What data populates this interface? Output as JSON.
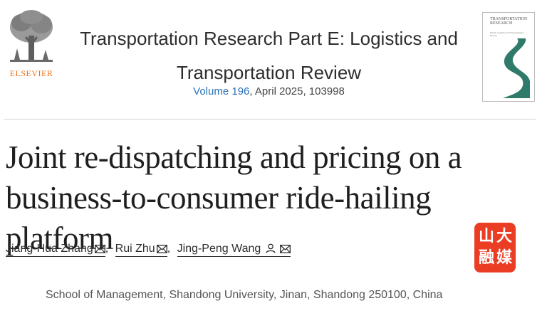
{
  "publisher": {
    "name": "ELSEVIER"
  },
  "journal": {
    "title_line1": "Transportation Research Part E: Logistics and",
    "title_line2": "Transportation Review",
    "volume_link": "Volume 196",
    "issue_rest": ", April 2025, 103998",
    "cover": {
      "title_line1": "TRANSPORTATION",
      "title_line2": "RESEARCH",
      "subtitle": "Part E: Logistics and Transportation Review",
      "accent_color": "#2f7a6a"
    }
  },
  "article": {
    "title_line1": "Joint re-dispatching and pricing on a",
    "title_line2": "business-to-consumer ride-hailing platform"
  },
  "authors": [
    {
      "name": "Jiang-Hua Zhang",
      "icons": [
        "mail-icon"
      ]
    },
    {
      "name": "Rui Zhu",
      "icons": [
        "mail-icon"
      ]
    },
    {
      "name": "Jing-Peng Wang",
      "icons": [
        "person-icon",
        "mail-icon"
      ]
    }
  ],
  "separator": ",",
  "affiliation": "School of Management, Shandong University, Jinan, Shandong 250100, China",
  "watermark": {
    "chars": [
      "山",
      "大",
      "融",
      "媒"
    ],
    "color": "#ea3d24"
  }
}
